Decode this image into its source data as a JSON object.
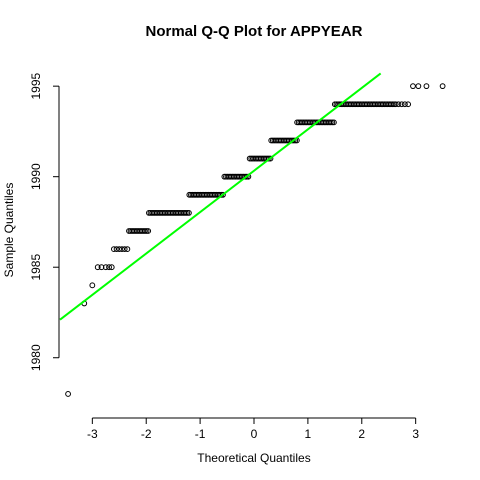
{
  "chart_data": {
    "type": "scatter",
    "title": "Normal Q-Q Plot for APPYEAR",
    "xlabel": "Theoretical Quantiles",
    "ylabel": "Sample Quantiles",
    "xlim": [
      -3.6,
      3.6
    ],
    "ylim": [
      1977.5,
      1996.5
    ],
    "x_ticks": [
      -3,
      -2,
      -1,
      0,
      1,
      2,
      3
    ],
    "y_ticks": [
      1980,
      1985,
      1990,
      1995
    ],
    "grid": false,
    "fit_line": {
      "color": "#00ff00",
      "x": [
        -3.6,
        2.35
      ],
      "y": [
        1982.1,
        1995.7
      ]
    },
    "series": [
      {
        "points": [
          {
            "x": -3.45,
            "y": 1978
          },
          {
            "x": -3.15,
            "y": 1983
          },
          {
            "x": -3.0,
            "y": 1984
          },
          {
            "x": -2.9,
            "y": 1985
          },
          {
            "x": -2.83,
            "y": 1985
          },
          {
            "x": -2.75,
            "y": 1985
          },
          {
            "x": -2.69,
            "y": 1985
          },
          {
            "x": -2.64,
            "y": 1985
          },
          {
            "x": -2.6,
            "y": 1986
          },
          {
            "x": -2.55,
            "y": 1986
          },
          {
            "x": -2.5,
            "y": 1986
          },
          {
            "x": -2.45,
            "y": 1986
          },
          {
            "x": -2.4,
            "y": 1986
          },
          {
            "x": -2.35,
            "y": 1986
          },
          {
            "x": 2.68,
            "y": 1994
          },
          {
            "x": 2.74,
            "y": 1994
          },
          {
            "x": 2.8,
            "y": 1994
          },
          {
            "x": 2.86,
            "y": 1994
          },
          {
            "x": 2.95,
            "y": 1995
          },
          {
            "x": 3.05,
            "y": 1995
          },
          {
            "x": 3.2,
            "y": 1995
          },
          {
            "x": 3.5,
            "y": 1995
          }
        ],
        "runs": [
          {
            "y": 1987,
            "x_start": -2.32,
            "x_end": -1.95
          },
          {
            "y": 1988,
            "x_start": -1.95,
            "x_end": -1.2
          },
          {
            "y": 1989,
            "x_start": -1.2,
            "x_end": -0.55
          },
          {
            "y": 1990,
            "x_start": -0.55,
            "x_end": -0.08
          },
          {
            "y": 1991,
            "x_start": -0.08,
            "x_end": 0.32
          },
          {
            "y": 1992,
            "x_start": 0.32,
            "x_end": 0.8
          },
          {
            "y": 1993,
            "x_start": 0.8,
            "x_end": 1.5
          },
          {
            "y": 1994,
            "x_start": 1.5,
            "x_end": 2.65
          }
        ]
      }
    ]
  }
}
